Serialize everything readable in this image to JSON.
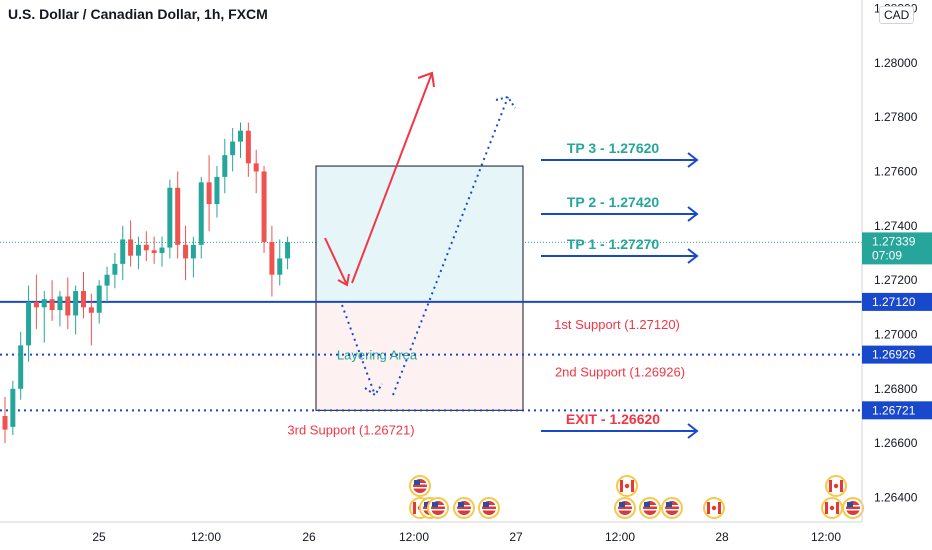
{
  "header": {
    "title": "U.S. Dollar / Canadian Dollar, 1h, FXCM",
    "currency": "CAD"
  },
  "chart_data": {
    "type": "candlestick",
    "title": "U.S. Dollar / Canadian Dollar, 1h, FXCM",
    "ylim": [
      1.2631,
      1.2822
    ],
    "y_ticks": [
      "1.28200",
      "1.28000",
      "1.27800",
      "1.27600",
      "1.27400",
      "1.27200",
      "1.27000",
      "1.26800",
      "1.26600",
      "1.26400"
    ],
    "x_ticks": [
      "25",
      "12:00",
      "26",
      "12:00",
      "27",
      "12:00",
      "28",
      "12:00"
    ],
    "current_price": {
      "label": "1.27339",
      "value": 1.27339,
      "countdown": "07:09"
    },
    "candles": [
      {
        "o": 1.267,
        "h": 1.2677,
        "l": 1.266,
        "c": 1.2665
      },
      {
        "o": 1.2666,
        "h": 1.2683,
        "l": 1.2663,
        "c": 1.268
      },
      {
        "o": 1.268,
        "h": 1.2701,
        "l": 1.2676,
        "c": 1.2696
      },
      {
        "o": 1.2696,
        "h": 1.2718,
        "l": 1.269,
        "c": 1.2712
      },
      {
        "o": 1.2712,
        "h": 1.2722,
        "l": 1.2702,
        "c": 1.271
      },
      {
        "o": 1.271,
        "h": 1.2716,
        "l": 1.2697,
        "c": 1.2713
      },
      {
        "o": 1.2713,
        "h": 1.272,
        "l": 1.2705,
        "c": 1.2709
      },
      {
        "o": 1.2709,
        "h": 1.2716,
        "l": 1.2703,
        "c": 1.2714
      },
      {
        "o": 1.2714,
        "h": 1.2721,
        "l": 1.2702,
        "c": 1.2707
      },
      {
        "o": 1.2707,
        "h": 1.2718,
        "l": 1.27,
        "c": 1.2716
      },
      {
        "o": 1.2716,
        "h": 1.2723,
        "l": 1.2706,
        "c": 1.271
      },
      {
        "o": 1.271,
        "h": 1.2715,
        "l": 1.2696,
        "c": 1.2708
      },
      {
        "o": 1.2708,
        "h": 1.272,
        "l": 1.2704,
        "c": 1.2718
      },
      {
        "o": 1.2718,
        "h": 1.2725,
        "l": 1.2712,
        "c": 1.2722
      },
      {
        "o": 1.2722,
        "h": 1.273,
        "l": 1.2717,
        "c": 1.2726
      },
      {
        "o": 1.2726,
        "h": 1.274,
        "l": 1.272,
        "c": 1.2735
      },
      {
        "o": 1.2735,
        "h": 1.2742,
        "l": 1.2725,
        "c": 1.2729
      },
      {
        "o": 1.2729,
        "h": 1.2736,
        "l": 1.2724,
        "c": 1.2733
      },
      {
        "o": 1.2733,
        "h": 1.2738,
        "l": 1.2727,
        "c": 1.2731
      },
      {
        "o": 1.2731,
        "h": 1.2736,
        "l": 1.2726,
        "c": 1.273
      },
      {
        "o": 1.273,
        "h": 1.2736,
        "l": 1.2725,
        "c": 1.2732
      },
      {
        "o": 1.2732,
        "h": 1.2757,
        "l": 1.2728,
        "c": 1.2754
      },
      {
        "o": 1.2754,
        "h": 1.276,
        "l": 1.2728,
        "c": 1.2733
      },
      {
        "o": 1.2733,
        "h": 1.274,
        "l": 1.272,
        "c": 1.2728
      },
      {
        "o": 1.2728,
        "h": 1.2736,
        "l": 1.2721,
        "c": 1.2733
      },
      {
        "o": 1.2733,
        "h": 1.2758,
        "l": 1.2728,
        "c": 1.2756
      },
      {
        "o": 1.2756,
        "h": 1.2766,
        "l": 1.2738,
        "c": 1.2748
      },
      {
        "o": 1.2748,
        "h": 1.2762,
        "l": 1.2743,
        "c": 1.2758
      },
      {
        "o": 1.2758,
        "h": 1.2772,
        "l": 1.2752,
        "c": 1.2766
      },
      {
        "o": 1.2766,
        "h": 1.2776,
        "l": 1.276,
        "c": 1.2771
      },
      {
        "o": 1.2771,
        "h": 1.2778,
        "l": 1.2765,
        "c": 1.2775
      },
      {
        "o": 1.2775,
        "h": 1.2778,
        "l": 1.2758,
        "c": 1.2763
      },
      {
        "o": 1.2763,
        "h": 1.2768,
        "l": 1.2752,
        "c": 1.276
      },
      {
        "o": 1.276,
        "h": 1.2762,
        "l": 1.273,
        "c": 1.2734
      },
      {
        "o": 1.2734,
        "h": 1.274,
        "l": 1.2714,
        "c": 1.2722
      },
      {
        "o": 1.2722,
        "h": 1.2735,
        "l": 1.2718,
        "c": 1.2728
      },
      {
        "o": 1.2728,
        "h": 1.2736,
        "l": 1.2724,
        "c": 1.2734
      }
    ],
    "levels": [
      {
        "name": "1st Support (1.27120)",
        "value": 1.2712,
        "style": "solid",
        "axis_label": "1.27120"
      },
      {
        "name": "2nd Support (1.26926)",
        "value": 1.26926,
        "style": "dotted",
        "axis_label": "1.26926"
      },
      {
        "name": "3rd Support (1.26721)",
        "value": 1.26721,
        "style": "dotted",
        "axis_label": "1.26721"
      }
    ],
    "targets": [
      {
        "label": "TP 3 - 1.27620",
        "value": 1.2762,
        "color": "#26a69a"
      },
      {
        "label": "TP 2 - 1.27420",
        "value": 1.2742,
        "color": "#26a69a"
      },
      {
        "label": "TP 1 - 1.27270",
        "value": 1.2727,
        "color": "#26a69a"
      },
      {
        "label": "EXIT - 1.26620",
        "value": 1.2662,
        "color": "#f23645"
      }
    ],
    "zones": [
      {
        "label": "Layering Area",
        "top": 1.2712,
        "bottom": 1.26721
      },
      {
        "label": "",
        "top": 1.2762,
        "bottom": 1.2712
      }
    ],
    "colors": {
      "up": "#26a69a",
      "down": "#ef5350",
      "line_blue": "#1848cc",
      "label_red": "#f23645",
      "label_green": "#26a69a",
      "profit_zone": "#e6f6f8",
      "loss_zone": "#fdf1f2"
    },
    "events": [
      {
        "col": 0,
        "row": 1,
        "flag": "us"
      },
      {
        "col": 0,
        "row": 0,
        "flag": "ca"
      },
      {
        "col": 1,
        "row": 0,
        "flag": "us"
      },
      {
        "col": 2,
        "row": 0,
        "flag": "us"
      },
      {
        "col": 3,
        "row": 0,
        "flag": "us"
      },
      {
        "col": 4,
        "row": 0,
        "flag": "us"
      },
      {
        "col": 5,
        "row": 1,
        "flag": "ca"
      },
      {
        "col": 5,
        "row": 0,
        "flag": "us"
      },
      {
        "col": 6,
        "row": 0,
        "flag": "us"
      },
      {
        "col": 7,
        "row": 0,
        "flag": "us"
      },
      {
        "col": 8,
        "row": 0,
        "flag": "us"
      },
      {
        "col": 9,
        "row": 0,
        "flag": "ca"
      },
      {
        "col": 10,
        "row": 1,
        "flag": "ca"
      },
      {
        "col": 10,
        "row": 0,
        "flag": "ca"
      },
      {
        "col": 11,
        "row": 0,
        "flag": "us"
      }
    ]
  }
}
